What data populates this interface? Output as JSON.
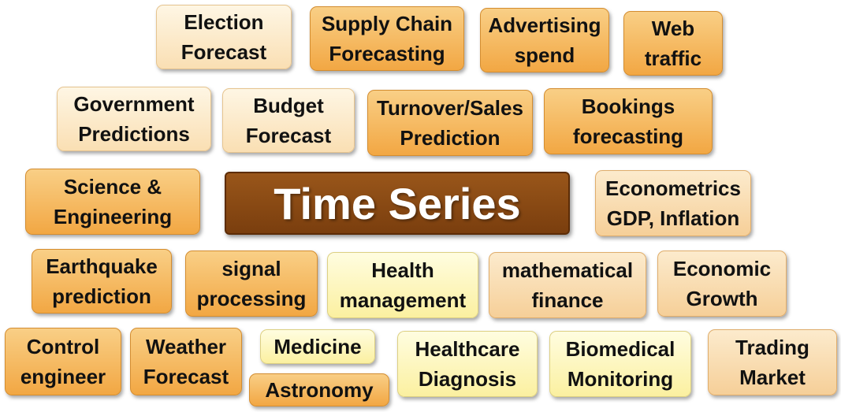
{
  "center": {
    "label": "Time Series"
  },
  "tiles": {
    "election": [
      "Election",
      "Forecast"
    ],
    "supply_chain": [
      "Supply Chain",
      "Forecasting"
    ],
    "advertising": [
      "Advertising",
      "spend"
    ],
    "web_traffic": [
      "Web",
      "traffic"
    ],
    "government": [
      "Government",
      "Predictions"
    ],
    "budget": [
      "Budget",
      "Forecast"
    ],
    "turnover": [
      "Turnover/Sales",
      "Prediction"
    ],
    "bookings": [
      "Bookings",
      "forecasting"
    ],
    "science": [
      "Science &",
      "Engineering"
    ],
    "econometrics": [
      "Econometrics",
      "GDP, Inflation"
    ],
    "earthquake": [
      "Earthquake",
      "prediction"
    ],
    "signal": [
      "signal",
      "processing"
    ],
    "health": [
      "Health",
      "management"
    ],
    "math_finance": [
      "mathematical",
      "finance"
    ],
    "economic_growth": [
      "Economic",
      "Growth"
    ],
    "control": [
      "Control",
      "engineer"
    ],
    "weather": [
      "Weather",
      "Forecast"
    ],
    "medicine": [
      "Medicine"
    ],
    "astronomy": [
      "Astronomy"
    ],
    "healthcare": [
      "Healthcare",
      "Diagnosis"
    ],
    "biomedical": [
      "Biomedical",
      "Monitoring"
    ],
    "trading": [
      "Trading",
      "Market"
    ]
  },
  "colors": {
    "orange": "#f2a743",
    "peach": "#f6cf98",
    "cream": "#fadfb3",
    "yellow": "#fbf0a0",
    "center": "#7a3e0e"
  }
}
